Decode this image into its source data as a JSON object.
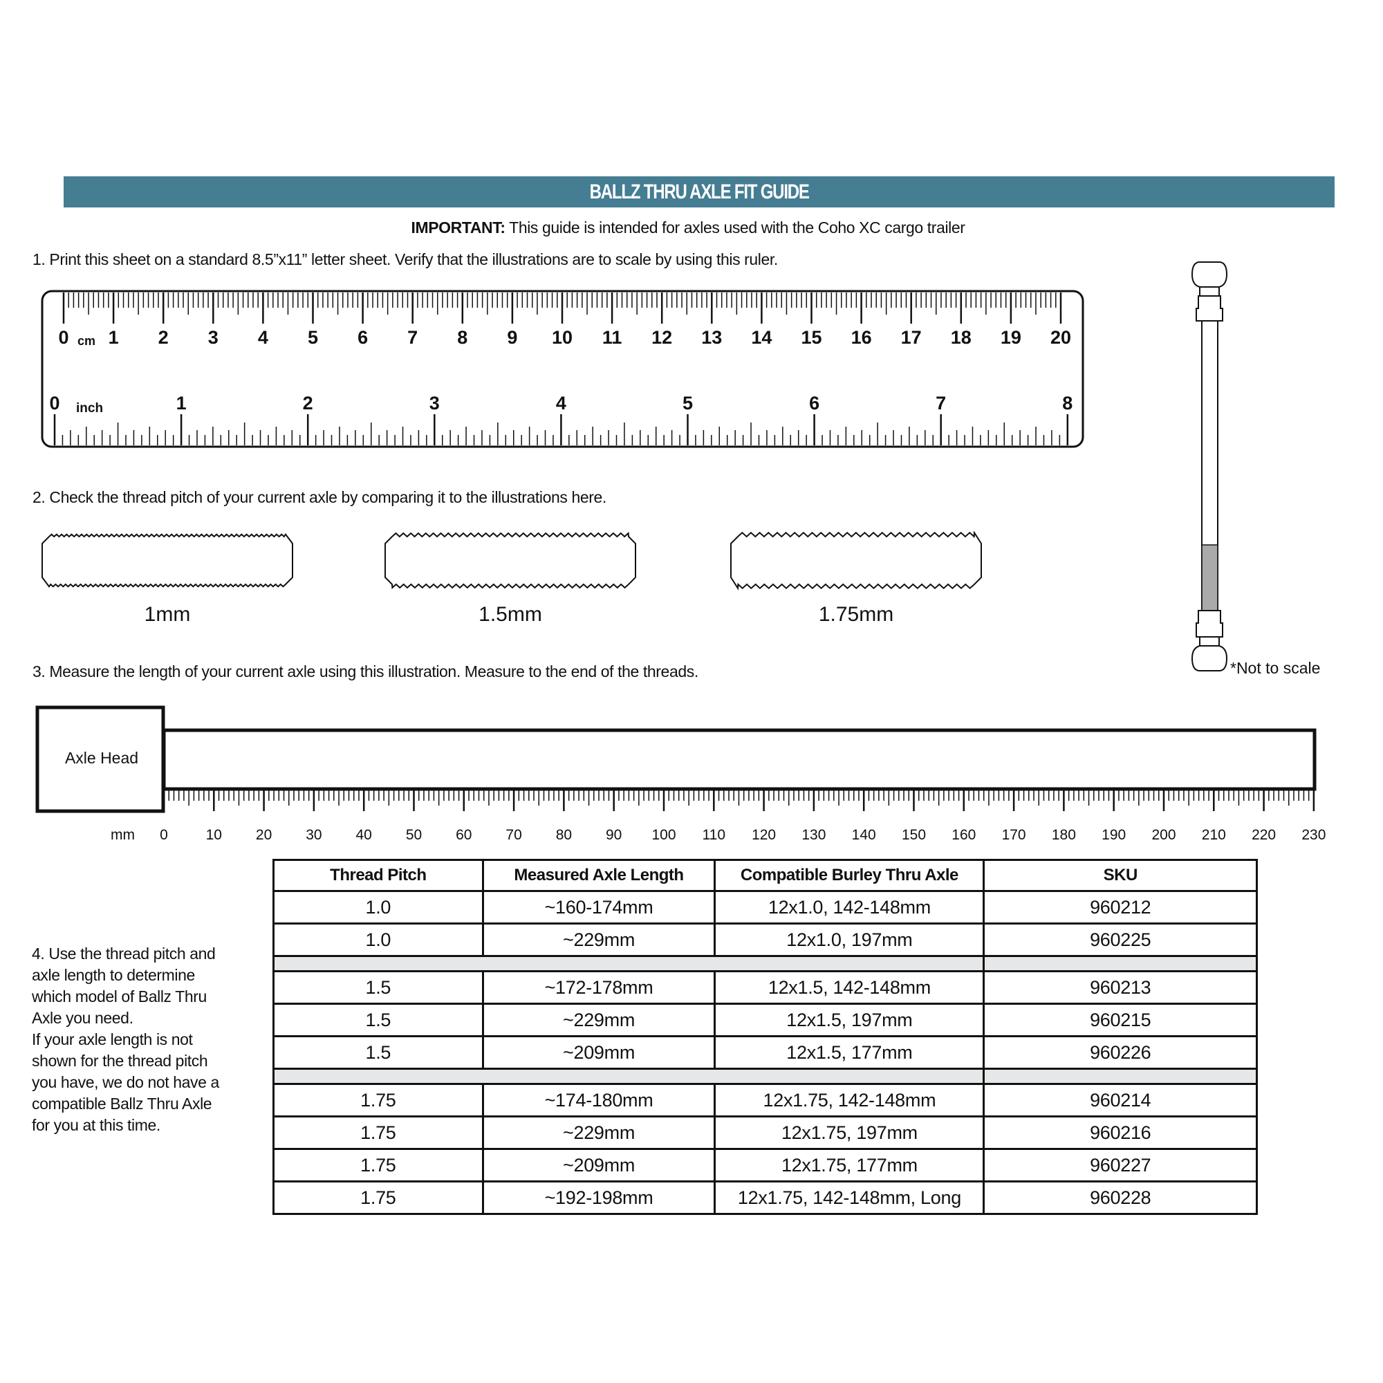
{
  "header": {
    "title": "BALLZ THRU AXLE FIT GUIDE",
    "color": "#457d93"
  },
  "important": {
    "label": "IMPORTANT:",
    "text": " This guide is intended for axles used with the Coho XC cargo trailer"
  },
  "steps": {
    "step1": "1. Print this sheet on a standard 8.5”x11” letter sheet. Verify that the illustrations are to scale by using this ruler.",
    "step2": "2. Check the thread pitch of your current axle by comparing it to the illustrations here.",
    "step3": "3. Measure the length of your current axle using this illustration. Measure to the end of the threads.",
    "step4": "4. Use the thread pitch and axle length to determine which model of Ballz Thru Axle you need.\nIf your axle length is not shown for the thread pitch you have, we do not have a compatible Ballz Thru Axle for you at this time."
  },
  "ruler": {
    "cm_unit": "cm",
    "inch_unit": "inch",
    "cm_labels": [
      "0",
      "1",
      "2",
      "3",
      "4",
      "5",
      "6",
      "7",
      "8",
      "9",
      "10",
      "11",
      "12",
      "13",
      "14",
      "15",
      "16",
      "17",
      "18",
      "19",
      "20"
    ],
    "inch_labels": [
      "0",
      "1",
      "2",
      "3",
      "4",
      "5",
      "6",
      "7",
      "8"
    ]
  },
  "threads": [
    {
      "label": "1mm",
      "pitch_mm": 1.0
    },
    {
      "label": "1.5mm",
      "pitch_mm": 1.5
    },
    {
      "label": "1.75mm",
      "pitch_mm": 1.75
    }
  ],
  "side_axle": {
    "note": "*Not to scale"
  },
  "measure": {
    "head_label": "Axle Head",
    "unit": "mm",
    "labels": [
      "0",
      "10",
      "20",
      "30",
      "40",
      "50",
      "60",
      "70",
      "80",
      "90",
      "100",
      "110",
      "120",
      "130",
      "140",
      "150",
      "160",
      "170",
      "180",
      "190",
      "200",
      "210",
      "220",
      "230"
    ]
  },
  "table": {
    "headers": [
      "Thread Pitch",
      "Measured Axle Length",
      "Compatible Burley Thru Axle",
      "SKU"
    ],
    "groups": [
      [
        [
          "1.0",
          "~160-174mm",
          "12x1.0, 142-148mm",
          "960212"
        ],
        [
          "1.0",
          "~229mm",
          "12x1.0, 197mm",
          "960225"
        ]
      ],
      [
        [
          "1.5",
          "~172-178mm",
          "12x1.5, 142-148mm",
          "960213"
        ],
        [
          "1.5",
          "~229mm",
          "12x1.5, 197mm",
          "960215"
        ],
        [
          "1.5",
          "~209mm",
          "12x1.5, 177mm",
          "960226"
        ]
      ],
      [
        [
          "1.75",
          "~174-180mm",
          "12x1.75, 142-148mm",
          "960214"
        ],
        [
          "1.75",
          "~229mm",
          "12x1.75, 197mm",
          "960216"
        ],
        [
          "1.75",
          "~209mm",
          "12x1.75, 177mm",
          "960227"
        ],
        [
          "1.75",
          "~192-198mm",
          "12x1.75, 142-148mm, Long",
          "960228"
        ]
      ]
    ]
  }
}
